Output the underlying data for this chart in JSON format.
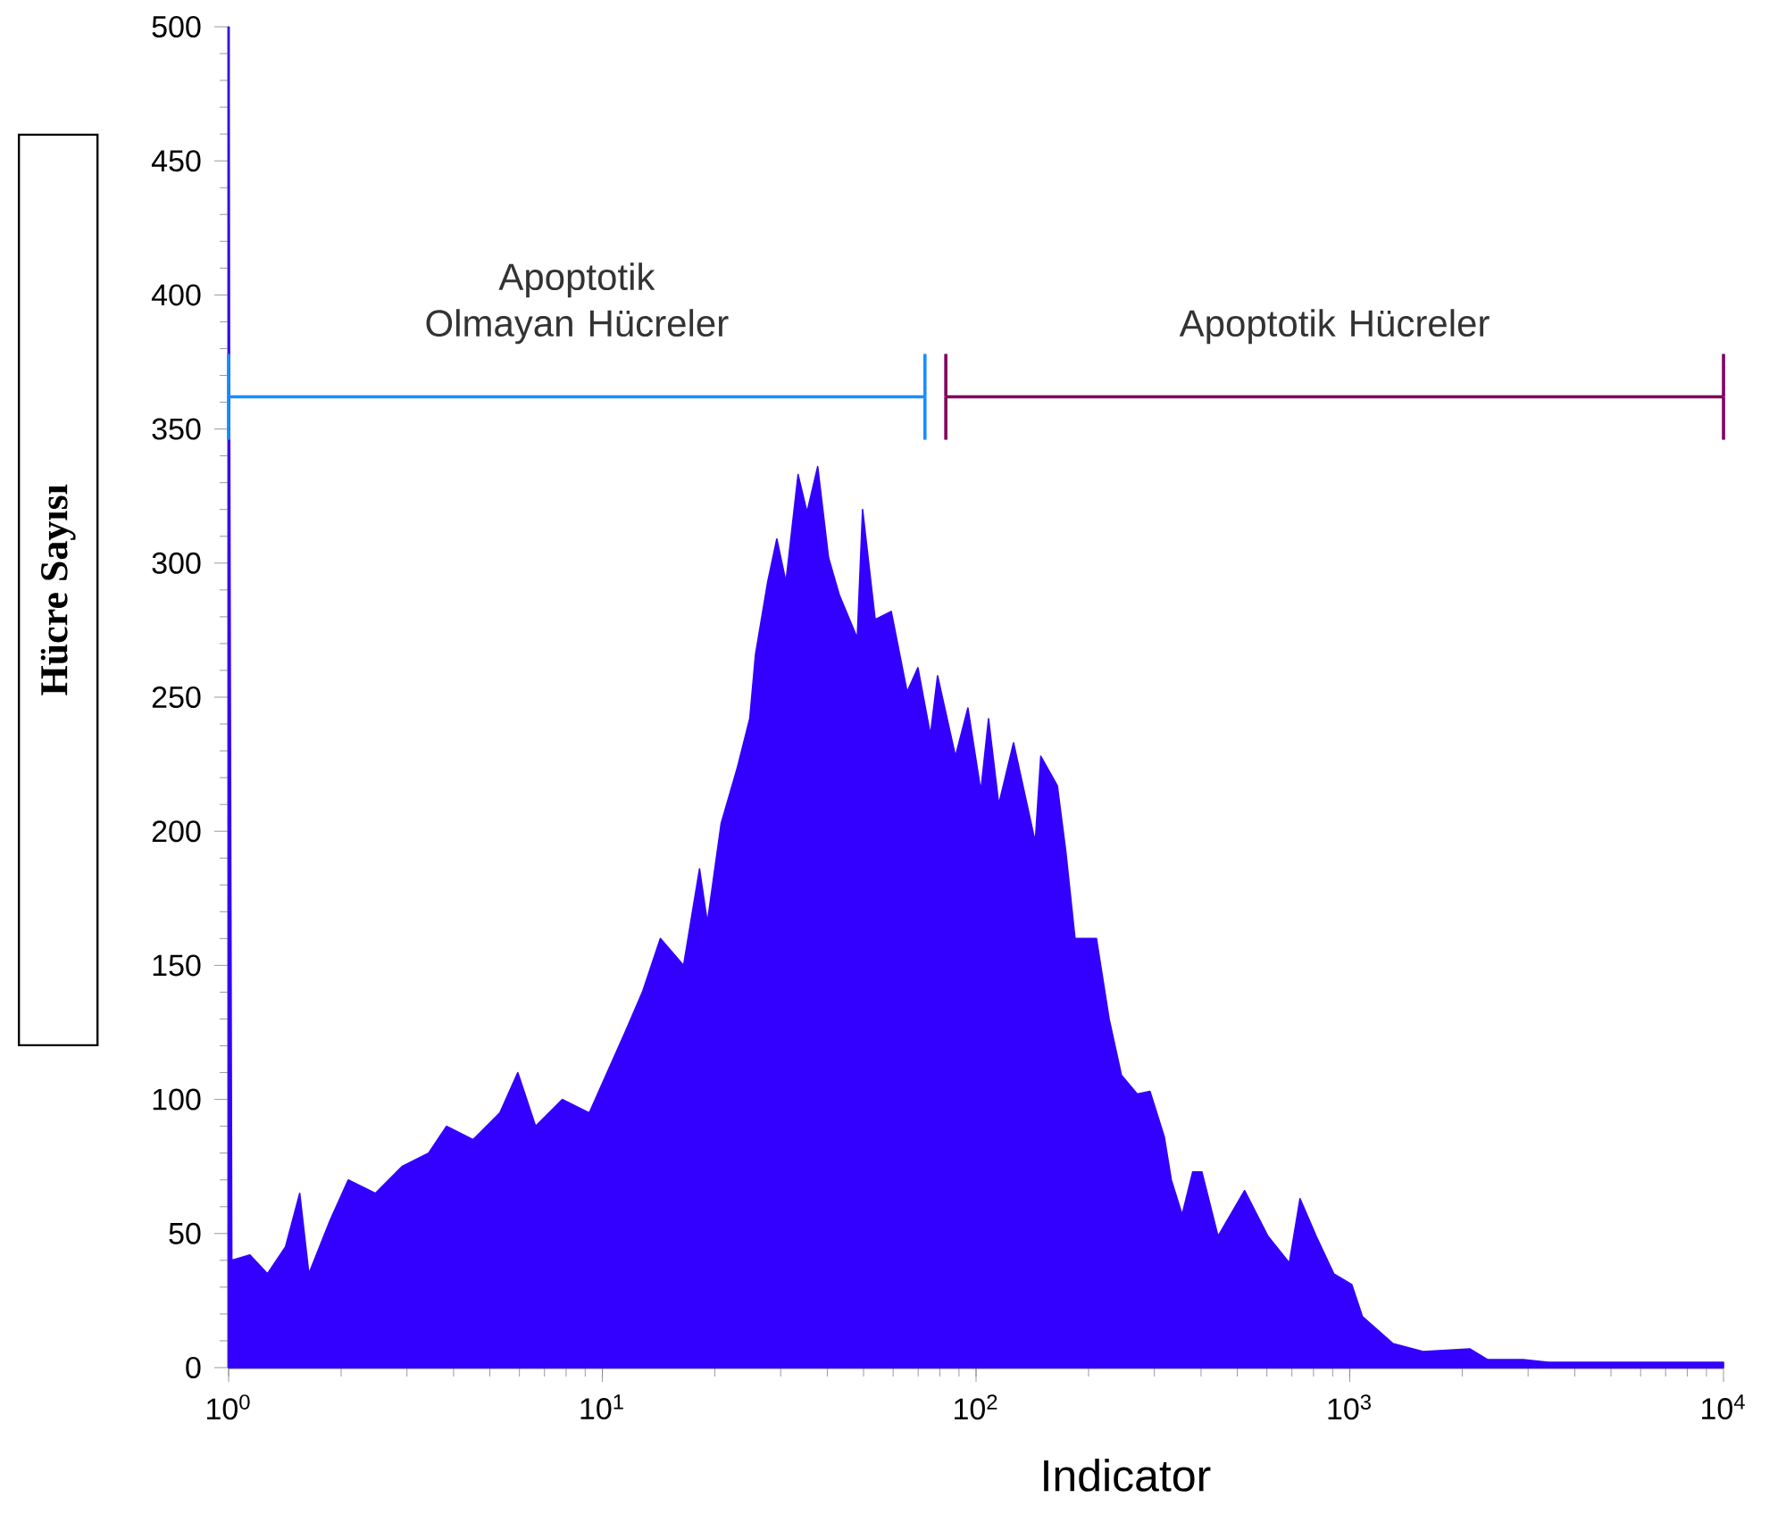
{
  "chart_data": {
    "type": "area",
    "xlabel": "Indicator",
    "ylabel": "Hücre Sayısı",
    "log": "x",
    "xlim": [
      1,
      10000
    ],
    "ylim": [
      0,
      500
    ],
    "xticks": [
      {
        "value": 1,
        "label": "10$^{0}$"
      },
      {
        "value": 10,
        "label": "10$^{1}$"
      },
      {
        "value": 100,
        "label": "10$^{2}$"
      },
      {
        "value": 1000,
        "label": "10$^{3}$"
      },
      {
        "value": 10000,
        "label": "10$^{4}$"
      }
    ],
    "yticks": [
      0,
      50,
      100,
      150,
      200,
      250,
      300,
      350,
      400,
      450,
      500
    ],
    "series": [
      {
        "color": "#3300ff",
        "x": [
          1,
          1.02,
          1.14,
          1.27,
          1.42,
          1.55,
          1.64,
          1.87,
          2.09,
          2.47,
          2.91,
          3.43,
          3.83,
          4.51,
          5.32,
          5.94,
          6.63,
          7.82,
          9.23,
          10.3,
          11.5,
          12.8,
          14.3,
          16.5,
          18.2,
          19.1,
          20.8,
          23.0,
          24.8,
          25.7,
          27.7,
          29.3,
          31.0,
          33.4,
          35.3,
          37.7,
          40.3,
          43.1,
          48.1,
          49.7,
          53.7,
          59.3,
          65.4,
          69.9,
          75.5,
          78.9,
          88.1,
          95.1,
          103,
          108,
          115,
          126,
          144,
          149,
          165,
          174,
          184,
          210,
          227,
          245,
          270,
          292,
          319,
          333,
          356,
          380,
          402,
          444,
          523,
          604,
          689,
          736,
          813,
          906,
          1012,
          1081,
          1303,
          1571,
          2094,
          2335,
          2911,
          3396,
          10000
        ],
        "values": [
          500,
          40,
          42,
          35,
          45,
          65,
          35,
          55,
          70,
          65,
          75,
          80,
          90,
          85,
          95,
          110,
          90,
          100,
          95,
          110,
          125,
          140,
          160,
          150,
          186,
          166,
          203,
          224,
          242,
          266,
          293,
          309,
          293,
          333,
          319,
          336,
          302,
          288,
          272,
          320,
          279,
          282,
          252,
          261,
          236,
          258,
          228,
          246,
          215,
          242,
          210,
          233,
          196,
          228,
          217,
          192,
          160,
          160,
          130,
          109,
          102,
          103,
          86,
          70,
          57,
          73,
          73,
          49,
          66,
          49,
          39,
          63,
          49,
          35,
          31,
          19,
          9,
          6,
          7,
          3,
          3,
          2,
          2
        ]
      },
      {
        "type": "line",
        "name": "Apoptotik Olmayan Hücreler",
        "color": "#1a8cff",
        "x": [
          1,
          73
        ],
        "values": [
          362,
          362
        ],
        "errors": [
          16,
          16
        ]
      },
      {
        "type": "line",
        "name": "Apoptotik Hücreler",
        "color": "#800060",
        "x": [
          83,
          10000
        ],
        "values": [
          362,
          362
        ],
        "errors": [
          16,
          16
        ]
      }
    ]
  }
}
